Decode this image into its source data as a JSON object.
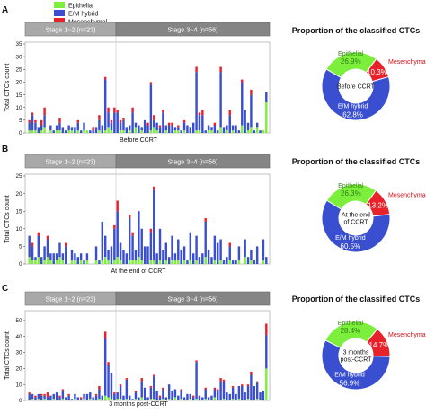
{
  "colors": {
    "epithelial": "#7cee3c",
    "hybrid": "#3a4fcf",
    "mesenchymal": "#e8222a"
  },
  "legend": [
    "Epithelial",
    "E/M hybrid",
    "Mesenchymal"
  ],
  "ylabel": "Total CTCs count",
  "stage_early": "Stage 1~2 (n=23)",
  "stage_late": "Stage 3~4 (n=56)",
  "pie_title": "Proportion of the classified CTCs",
  "chart_data": [
    {
      "panel": "A",
      "type": "bar",
      "stacked": true,
      "xlabel": "Before CCRT",
      "ylabel": "Total CTCs count",
      "yticks": [
        0,
        5,
        10,
        15,
        20,
        25,
        30,
        35
      ],
      "ylim": [
        0,
        35
      ],
      "series": [
        {
          "name": "Epithelial",
          "values": [
            1,
            1,
            1,
            0,
            1,
            2,
            0,
            1,
            0,
            1,
            1,
            0,
            0,
            1,
            1,
            0,
            1,
            0,
            1,
            1,
            0,
            0,
            0,
            1,
            0,
            1,
            2,
            1,
            0,
            0,
            1,
            1,
            0,
            1,
            0,
            2,
            0,
            1,
            0,
            0,
            1,
            2,
            1,
            0,
            0,
            1,
            0,
            0,
            1,
            1,
            0,
            1,
            0,
            0,
            0,
            1,
            1,
            0,
            0,
            1,
            1,
            0,
            0,
            2,
            0,
            1,
            0,
            1,
            0,
            0,
            3,
            0,
            1,
            2,
            0,
            2,
            0,
            1,
            12
          ]
        },
        {
          "name": "E/M hybrid",
          "values": [
            3,
            6,
            3,
            2,
            2,
            5,
            0,
            2,
            1,
            2,
            3,
            2,
            1,
            2,
            1,
            2,
            3,
            1,
            3,
            0,
            1,
            1,
            2,
            4,
            3,
            20,
            6,
            3,
            8,
            8,
            3,
            4,
            2,
            2,
            8,
            2,
            3,
            1,
            5,
            3,
            18,
            3,
            3,
            2,
            8,
            2,
            3,
            3,
            1,
            1,
            1,
            3,
            3,
            2,
            4,
            23,
            6,
            7,
            1,
            2,
            1,
            3,
            1,
            22,
            2,
            2,
            7,
            2,
            3,
            1,
            17,
            9,
            3,
            13,
            1,
            2,
            1,
            0,
            4
          ]
        },
        {
          "name": "Mesenchymal",
          "values": [
            1,
            1,
            1,
            0,
            2,
            3,
            0,
            0,
            0,
            0,
            2,
            0,
            0,
            0,
            0,
            0,
            1,
            0,
            0,
            0,
            0,
            1,
            0,
            2,
            0,
            1,
            2,
            1,
            2,
            1,
            1,
            1,
            0,
            0,
            2,
            0,
            0,
            0,
            0,
            1,
            1,
            2,
            0,
            1,
            1,
            0,
            1,
            1,
            0,
            1,
            0,
            1,
            0,
            0,
            0,
            2,
            1,
            2,
            0,
            0,
            0,
            1,
            0,
            2,
            0,
            0,
            2,
            0,
            0,
            0,
            1,
            0,
            0,
            2,
            0,
            0,
            0,
            0,
            0
          ]
        }
      ],
      "pie": {
        "center_label": "Before CCRT",
        "slices": [
          {
            "name": "Epithelial",
            "value": 26.9,
            "label": "26.9%"
          },
          {
            "name": "Mesenchymal",
            "value": 10.3,
            "label": "10.3%"
          },
          {
            "name": "E/M hybrid",
            "value": 62.8,
            "label": "62.8%"
          }
        ]
      }
    },
    {
      "panel": "B",
      "type": "bar",
      "stacked": true,
      "xlabel": "At the end of CCRT",
      "ylabel": "Total CTCs count",
      "yticks": [
        0,
        5,
        10,
        15,
        20,
        25
      ],
      "ylim": [
        0,
        25
      ],
      "series": [
        {
          "name": "Epithelial",
          "values": [
            2,
            1,
            1,
            2,
            0,
            1,
            2,
            1,
            0,
            1,
            2,
            1,
            0,
            0,
            1,
            1,
            0,
            1,
            0,
            1,
            0,
            0,
            1,
            0,
            1,
            2,
            1,
            0,
            1,
            2,
            1,
            0,
            0,
            1,
            1,
            1,
            2,
            1,
            0,
            0,
            1,
            1,
            0,
            1,
            0,
            1,
            0,
            1,
            1,
            1,
            0,
            1,
            0,
            1,
            0,
            1,
            0,
            0,
            2,
            0,
            0,
            1,
            0,
            1,
            0,
            0,
            1,
            0,
            0,
            1,
            0,
            2,
            0,
            1,
            0,
            0,
            0,
            1,
            0
          ]
        },
        {
          "name": "E/M hybrid",
          "values": [
            6,
            4,
            1,
            6,
            2,
            4,
            5,
            2,
            3,
            2,
            4,
            2,
            5,
            0,
            3,
            2,
            2,
            2,
            1,
            2,
            0,
            0,
            4,
            1,
            11,
            6,
            3,
            5,
            9,
            13,
            5,
            4,
            3,
            12,
            7,
            3,
            13,
            9,
            5,
            5,
            8,
            20,
            3,
            9,
            4,
            5,
            2,
            7,
            2,
            6,
            4,
            4,
            1,
            8,
            3,
            7,
            2,
            3,
            10,
            4,
            2,
            7,
            6,
            6,
            1,
            2,
            4,
            1,
            1,
            4,
            0,
            5,
            2,
            3,
            1,
            5,
            0,
            6,
            2
          ]
        },
        {
          "name": "Mesenchymal",
          "values": [
            0,
            1,
            0,
            1,
            0,
            0,
            1,
            0,
            0,
            0,
            0,
            0,
            1,
            0,
            0,
            0,
            0,
            0,
            0,
            0,
            0,
            0,
            0,
            0,
            0,
            0,
            0,
            0,
            1,
            3,
            0,
            0,
            0,
            1,
            1,
            0,
            0,
            0,
            0,
            0,
            1,
            1,
            0,
            0,
            0,
            0,
            0,
            0,
            0,
            0,
            0,
            0,
            0,
            0,
            0,
            0,
            0,
            0,
            1,
            0,
            0,
            0,
            0,
            0,
            0,
            0,
            1,
            0,
            0,
            0,
            0,
            0,
            0,
            0,
            0,
            0,
            0,
            0,
            0
          ]
        }
      ],
      "pie": {
        "center_label": "At the end of CCRT",
        "slices": [
          {
            "name": "Epithelial",
            "value": 26.3,
            "label": "26.3%"
          },
          {
            "name": "Mesenchymal",
            "value": 13.2,
            "label": "13.2%"
          },
          {
            "name": "E/M hybrid",
            "value": 60.5,
            "label": "60.5%"
          }
        ]
      }
    },
    {
      "panel": "C",
      "type": "bar",
      "stacked": true,
      "xlabel": "3 months post-CCRT",
      "ylabel": "Total CTCs count",
      "yticks": [
        0,
        10,
        20,
        30,
        40,
        50
      ],
      "ylim": [
        0,
        55
      ],
      "series": [
        {
          "name": "Epithelial",
          "values": [
            0,
            1,
            0,
            1,
            0,
            1,
            0,
            0,
            1,
            0,
            0,
            1,
            0,
            0,
            0,
            1,
            0,
            0,
            1,
            0,
            1,
            0,
            0,
            1,
            0,
            3,
            2,
            1,
            0,
            1,
            1,
            0,
            1,
            0,
            0,
            1,
            0,
            2,
            0,
            0,
            1,
            1,
            0,
            0,
            1,
            0,
            1,
            0,
            2,
            0,
            1,
            0,
            0,
            1,
            0,
            1,
            0,
            0,
            1,
            0,
            0,
            2,
            0,
            0,
            1,
            0,
            0,
            1,
            0,
            1,
            0,
            0,
            1,
            0,
            0,
            1,
            0,
            0,
            20
          ]
        },
        {
          "name": "E/M hybrid",
          "values": [
            4,
            3,
            2,
            3,
            3,
            2,
            2,
            3,
            3,
            5,
            2,
            5,
            2,
            3,
            1,
            3,
            2,
            1,
            3,
            4,
            4,
            2,
            3,
            6,
            3,
            36,
            20,
            16,
            4,
            4,
            8,
            3,
            12,
            3,
            1,
            4,
            2,
            10,
            8,
            2,
            7,
            14,
            6,
            2,
            6,
            2,
            9,
            6,
            5,
            3,
            5,
            2,
            4,
            3,
            2,
            23,
            3,
            2,
            6,
            2,
            3,
            5,
            6,
            12,
            11,
            5,
            4,
            7,
            4,
            8,
            9,
            5,
            8,
            16,
            9,
            10,
            5,
            6,
            21
          ]
        },
        {
          "name": "Mesenchymal",
          "values": [
            1,
            0,
            1,
            0,
            1,
            1,
            3,
            0,
            0,
            0,
            1,
            1,
            0,
            1,
            0,
            0,
            0,
            1,
            0,
            0,
            0,
            0,
            1,
            2,
            0,
            4,
            2,
            0,
            1,
            0,
            1,
            0,
            1,
            0,
            0,
            1,
            0,
            2,
            0,
            0,
            1,
            1,
            0,
            1,
            1,
            0,
            0,
            0,
            0,
            0,
            1,
            0,
            0,
            0,
            1,
            1,
            0,
            0,
            1,
            0,
            0,
            1,
            1,
            2,
            1,
            0,
            0,
            1,
            0,
            0,
            1,
            0,
            1,
            2,
            0,
            1,
            0,
            0,
            7
          ]
        }
      ],
      "pie": {
        "center_label": "3 months post-CCRT",
        "slices": [
          {
            "name": "Epithelial",
            "value": 28.4,
            "label": "28.4%"
          },
          {
            "name": "Mesenchymal",
            "value": 14.7,
            "label": "14.7%"
          },
          {
            "name": "E/M hybrid",
            "value": 56.9,
            "label": "56.9%"
          }
        ]
      }
    }
  ]
}
